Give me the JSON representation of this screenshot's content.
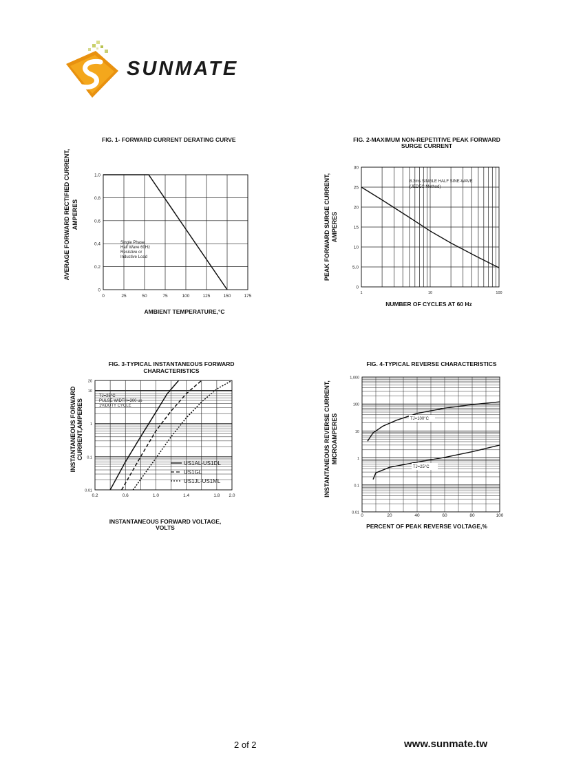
{
  "header": {
    "brand": "SUNMATE"
  },
  "footer": {
    "page": "2 of 2",
    "url": "www.sunmate.tw"
  },
  "figures": {
    "fig1": {
      "title": "FIG. 1- FORWARD CURRENT DERATING CURVE",
      "ylabel_1": "AVERAGE FORWARD RECTIFIED CURRENT,",
      "ylabel_2": "AMPERES",
      "xlabel": "AMBIENT TEMPERATURE,°C",
      "note": [
        "Single Phase",
        "Half Wave 60Hz",
        "Resistive or",
        "Inductive Load"
      ]
    },
    "fig2": {
      "title_1": "FIG. 2-MAXIMUM NON-REPETITIVE PEAK FORWARD",
      "title_2": "SURGE CURRENT",
      "ylabel_1": "PEAK  FORWARD SURGE CURRENT,",
      "ylabel_2": "AMPERES",
      "xlabel": "NUMBER OF CYCLES AT 60 Hz",
      "note": [
        "8.3ms SINGLE HALF SINE-WAVE",
        "(JEDEC Method)"
      ]
    },
    "fig3": {
      "title_1": "FIG. 3-TYPICAL INSTANTANEOUS FORWARD",
      "title_2": "CHARACTERISTICS",
      "ylabel_1": "INSTANTANEOUS FORWARD",
      "ylabel_2": "CURRENT,AMPERES",
      "xlabel_1": "INSTANTANEOUS FORWARD VOLTAGE,",
      "xlabel_2": "VOLTS",
      "note": [
        "TJ=25°C",
        "PULSE WIDTH=300 us",
        "1%DUTY CYCLE"
      ]
    },
    "fig4": {
      "title": "FIG. 4-TYPICAL REVERSE CHARACTERISTICS",
      "ylabel_1": "INSTANTANEOUS REVERSE CURRENT,",
      "ylabel_2": "MICROAMPERES",
      "xlabel": "PERCENT OF PEAK REVERSE VOLTAGE,%"
    }
  },
  "chart_data": [
    {
      "type": "line",
      "title": "FIG. 1- FORWARD CURRENT DERATING CURVE",
      "xlabel": "AMBIENT TEMPERATURE,°C",
      "ylabel": "AVERAGE FORWARD RECTIFIED CURRENT, AMPERES",
      "xlim": [
        0,
        175
      ],
      "ylim": [
        0,
        1.0
      ],
      "xticks": [
        "0",
        "25",
        "50",
        "75",
        "100",
        "125",
        "150",
        "175"
      ],
      "yticks": [
        "0",
        "0.2",
        "0.4",
        "0.6",
        "0.8",
        "1.0"
      ],
      "series": [
        {
          "name": "derating",
          "x": [
            0,
            55,
            150
          ],
          "y": [
            1.0,
            1.0,
            0
          ]
        }
      ]
    },
    {
      "type": "line",
      "xscale": "log",
      "title": "FIG. 2-MAXIMUM NON-REPETITIVE PEAK FORWARD SURGE CURRENT",
      "xlabel": "NUMBER OF CYCLES AT 60 Hz",
      "ylabel": "PEAK FORWARD SURGE CURRENT, AMPERES",
      "xlim": [
        1,
        100
      ],
      "ylim": [
        0,
        30
      ],
      "xticks": [
        "1",
        "10",
        "100"
      ],
      "yticks": [
        "0",
        "5.0",
        "10",
        "15",
        "20",
        "25",
        "30"
      ],
      "series": [
        {
          "name": "surge",
          "x": [
            1,
            2,
            5,
            10,
            20,
            50,
            100
          ],
          "y": [
            25,
            21.8,
            17.4,
            14,
            11,
            7.4,
            4.8
          ]
        }
      ]
    },
    {
      "type": "line",
      "yscale": "log",
      "title": "FIG. 3-TYPICAL INSTANTANEOUS FORWARD CHARACTERISTICS",
      "xlabel": "INSTANTANEOUS FORWARD VOLTAGE, VOLTS",
      "ylabel": "INSTANTANEOUS FORWARD CURRENT,AMPERES",
      "xlim": [
        0.2,
        2.0
      ],
      "ylim": [
        0.01,
        20
      ],
      "xticks": [
        "0.2",
        "0.6",
        "1.0",
        "1.4",
        "1.8",
        "2.0"
      ],
      "yticks": [
        "0.01",
        "0.1",
        "1",
        "10",
        "20"
      ],
      "series": [
        {
          "name": "US1AL-US1DL",
          "style": "solid",
          "x": [
            0.4,
            0.6,
            0.8,
            1.0,
            1.15,
            1.3
          ],
          "y": [
            0.01,
            0.07,
            0.4,
            2.2,
            8,
            20
          ]
        },
        {
          "name": "US1GL",
          "style": "dashed",
          "x": [
            0.55,
            0.8,
            1.0,
            1.2,
            1.4,
            1.6
          ],
          "y": [
            0.01,
            0.1,
            0.6,
            2.4,
            8,
            20
          ]
        },
        {
          "name": "US1JL-US1ML",
          "style": "dotted",
          "x": [
            0.7,
            1.0,
            1.2,
            1.4,
            1.6,
            1.8,
            2.0
          ],
          "y": [
            0.01,
            0.09,
            0.4,
            1.5,
            4.5,
            11,
            20
          ]
        }
      ]
    },
    {
      "type": "line",
      "yscale": "log",
      "title": "FIG. 4-TYPICAL REVERSE CHARACTERISTICS",
      "xlabel": "PERCENT OF PEAK REVERSE VOLTAGE,%",
      "ylabel": "INSTANTANEOUS REVERSE CURRENT, MICROAMPERES",
      "xlim": [
        0,
        100
      ],
      "ylim": [
        0.01,
        1000
      ],
      "xticks": [
        "0",
        "20",
        "40",
        "60",
        "80",
        "100"
      ],
      "yticks": [
        "0.01",
        "0.1",
        "1",
        "10",
        "100",
        "1,000"
      ],
      "series": [
        {
          "name": "TJ=100°C",
          "x": [
            4,
            8,
            15,
            25,
            40,
            60,
            80,
            100
          ],
          "y": [
            4.2,
            8.5,
            15,
            25,
            45,
            70,
            95,
            120
          ]
        },
        {
          "name": "TJ=25°C",
          "x": [
            8,
            10,
            20,
            40,
            60,
            80,
            100
          ],
          "y": [
            0.16,
            0.28,
            0.45,
            0.7,
            1.05,
            1.7,
            3
          ]
        }
      ]
    }
  ]
}
